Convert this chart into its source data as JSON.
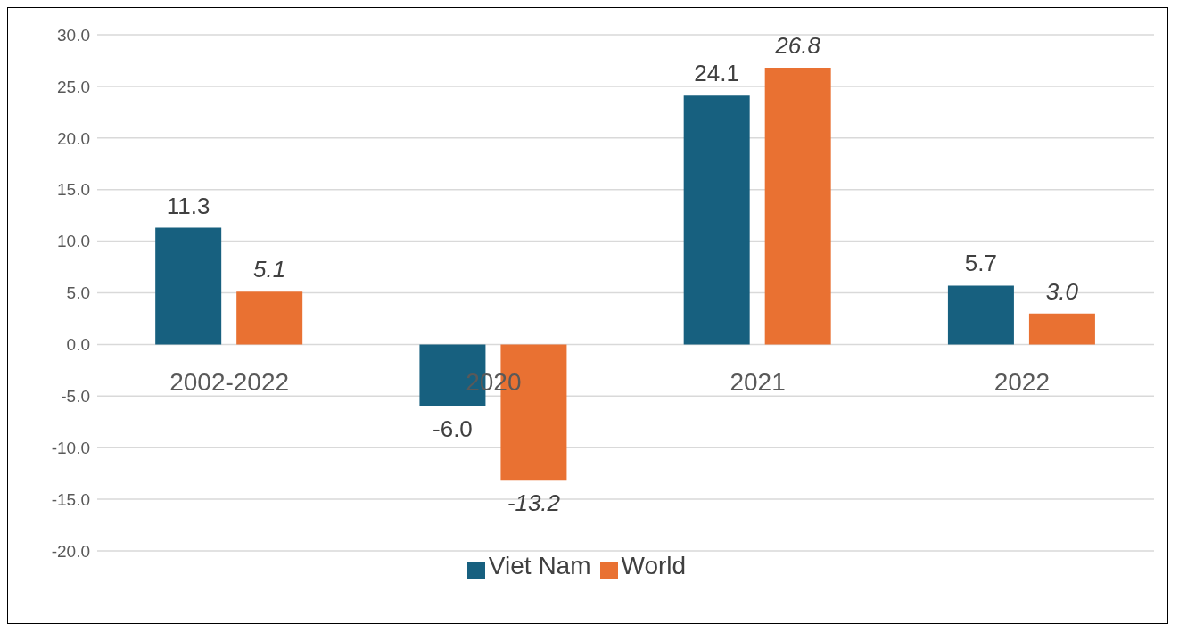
{
  "chart_data": {
    "type": "bar",
    "categories": [
      "2002-2022",
      "2020",
      "2021",
      "2022"
    ],
    "series": [
      {
        "name": "Viet Nam",
        "color": "#17607f",
        "values": [
          11.3,
          -6.0,
          24.1,
          5.7
        ],
        "value_labels": [
          "11.3",
          "-6.0",
          "24.1",
          "5.7"
        ]
      },
      {
        "name": "World",
        "color": "#e97132",
        "values": [
          5.1,
          -13.2,
          26.8,
          3.0
        ],
        "value_labels": [
          "5.1",
          "-13.2",
          "26.8",
          "3.0"
        ]
      }
    ],
    "ylim": [
      -20,
      30
    ],
    "yticks": [
      {
        "value": -20,
        "label": "-20.0"
      },
      {
        "value": -15,
        "label": "-15.0"
      },
      {
        "value": -10,
        "label": "-10.0"
      },
      {
        "value": -5,
        "label": "-5.0"
      },
      {
        "value": 0,
        "label": "0.0"
      },
      {
        "value": 5,
        "label": "5.0"
      },
      {
        "value": 10,
        "label": "10.0"
      },
      {
        "value": 15,
        "label": "15.0"
      },
      {
        "value": 20,
        "label": "20.0"
      },
      {
        "value": 25,
        "label": "25.0"
      },
      {
        "value": 30,
        "label": "30.0"
      }
    ],
    "grid": "y",
    "legend": "bottom"
  }
}
